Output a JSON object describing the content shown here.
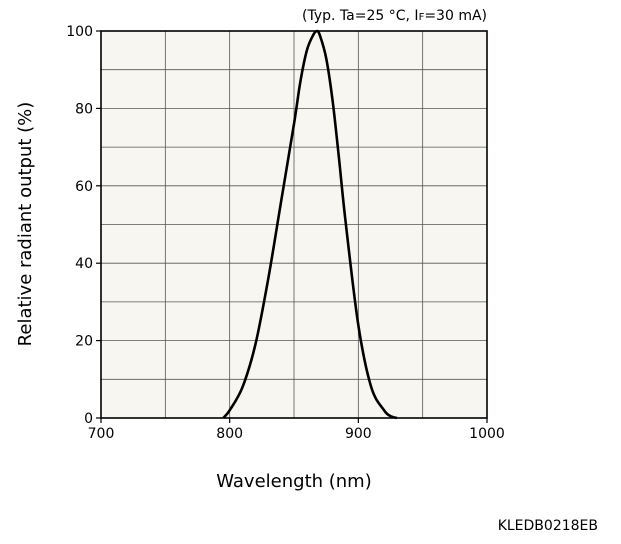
{
  "chart_data": {
    "type": "line",
    "title": "",
    "conditions": {
      "prefix": "(Typ. Ta=25 °C, I",
      "subscript": "F",
      "suffix": "=30 mA)"
    },
    "xlabel": "Wavelength (nm)",
    "ylabel": "Relative radiant output (%)",
    "xlim": [
      700,
      1000
    ],
    "ylim": [
      0,
      100
    ],
    "x_ticks": [
      700,
      800,
      900,
      1000
    ],
    "y_ticks": [
      0,
      20,
      40,
      60,
      80,
      100
    ],
    "x_ticks_labels": [
      "700",
      "800",
      "900",
      "1000"
    ],
    "y_ticks_labels": [
      "0",
      "20",
      "40",
      "60",
      "80",
      "100"
    ],
    "x_minor_step": 50,
    "y_minor_step": 10,
    "grid": true,
    "legend": "none",
    "colors": {
      "plot_background": "#f8f6f0",
      "grid": "#555555",
      "line": "#000000"
    },
    "series": [
      {
        "x": [
          795,
          800,
          810,
          820,
          830,
          840,
          850,
          855,
          860,
          865,
          868,
          870,
          875,
          880,
          885,
          890,
          900,
          910,
          920,
          925,
          930
        ],
        "y": [
          0,
          2,
          8,
          19,
          36,
          56,
          76,
          87,
          95,
          99,
          100,
          99,
          93,
          82,
          67,
          51,
          24,
          8,
          2,
          0.5,
          0
        ]
      }
    ]
  },
  "footer": {
    "code": "KLEDB0218EB"
  }
}
